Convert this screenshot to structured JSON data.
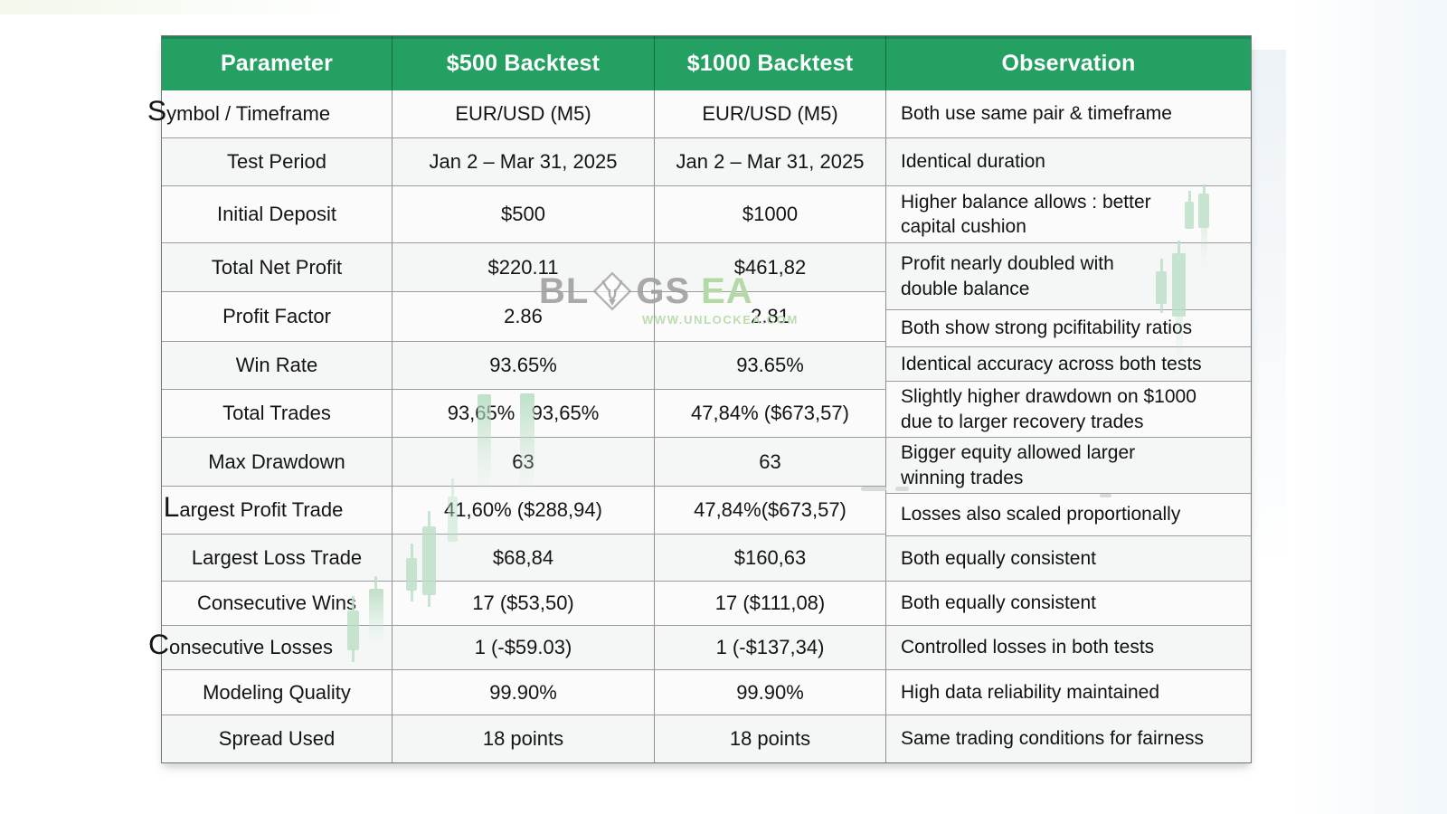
{
  "chart_data": {
    "type": "table",
    "columns": [
      "Parameter",
      "$500 Backtest",
      "$1000 Backtest",
      "Observation"
    ],
    "rows": [
      [
        "Symbol / Timeframe",
        "EUR/USD (M5)",
        "EUR/USD (M5)",
        "Both use same pair & timeframe"
      ],
      [
        "Test Period",
        "Jan 2 – Mar 31, 2025",
        "Jan 2 – Mar 31, 2025",
        "Identical duration"
      ],
      [
        "Initial Deposit",
        "$500",
        "$1000",
        "Higher balance allows : better capital cushion"
      ],
      [
        "Total Net Profit",
        "$220.11",
        "$461,82",
        "Profit nearly doubled with double balance"
      ],
      [
        "Profit Factor",
        "2.86",
        "2.81",
        "Both show strong pcifitability ratios"
      ],
      [
        "Win Rate",
        "93.65%",
        "93.65%",
        "Identical accuracy across both tests"
      ],
      [
        "Total Trades",
        "93,65%   93,65%",
        "47,84% ($673,57)",
        "Slightly higher drawdown on $1000 due to larger recovery trades"
      ],
      [
        "Max Drawdown",
        "63",
        "63",
        "Bigger equity allowed larger winning trades"
      ],
      [
        "Largest Profit Trade",
        "41,60% ($288,94)",
        "47,84%($673,57)",
        "Losses also scaled proportionally"
      ],
      [
        "Largest Loss Trade",
        "$68,84",
        "$160,63",
        "Both equally consistent"
      ],
      [
        "Consecutive Wins",
        "17 ($53,50)",
        "17 ($111,08)",
        "Both equally consistent"
      ],
      [
        "Consecutive Losses",
        "1 (-$59.03)",
        "1 (-$137,34)",
        "Controlled losses in both tests"
      ],
      [
        "Modeling Quality",
        "99.90%",
        "99.90%",
        "High data reliability maintained"
      ],
      [
        "Spread Used",
        "18 points",
        "18 points",
        "Same trading conditions for fairness"
      ]
    ],
    "title": "",
    "header_bg_color": "#25a063",
    "header_text_color": "#ffffff"
  },
  "watermark": {
    "part1": "BL",
    "part2": "GS",
    "part3": "EA",
    "url": "WWW.UNLOCKEA.COM",
    "gray_color": "#9e9e9e",
    "green_color": "#b4d9a6"
  }
}
